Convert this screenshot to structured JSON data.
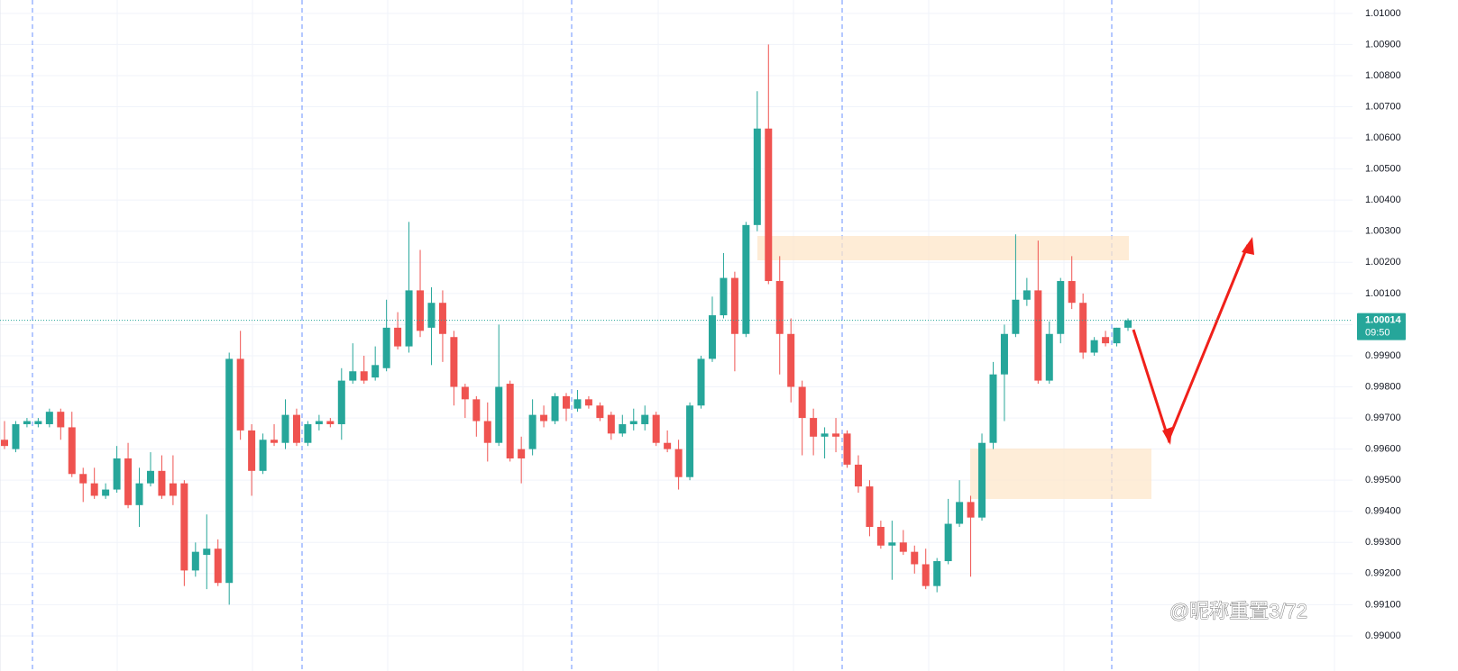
{
  "chart_data": {
    "type": "candlestick",
    "open": [
      0.9963,
      0.996,
      0.9968,
      0.9968,
      0.9968,
      0.9972,
      0.9967,
      0.9952,
      0.9949,
      0.9945,
      0.9947,
      0.9957,
      0.9942,
      0.9949,
      0.9953,
      0.9949,
      0.9949,
      0.9921,
      0.9926,
      0.9928,
      0.9917,
      0.9989,
      0.9966,
      0.9953,
      0.9963,
      0.9962,
      0.9971,
      0.9962,
      0.9968,
      0.9969,
      0.9968,
      0.9982,
      0.9985,
      0.9983,
      0.9986,
      0.9999,
      0.9993,
      1.0011,
      0.9999,
      1.0007,
      0.9996,
      0.998,
      0.9976,
      0.9969,
      0.9962,
      0.9981,
      0.996,
      0.996,
      0.9971,
      0.9969,
      0.9977,
      0.9973,
      0.9976,
      0.9974,
      0.9971,
      0.9965,
      0.9968,
      0.9968,
      0.9971,
      0.9962,
      0.996,
      0.9951,
      0.9974,
      0.9989,
      1.0003,
      1.0015,
      0.9997,
      1.0032,
      1.0063,
      1.0014,
      0.9997,
      0.998,
      0.997,
      0.9964,
      0.9965,
      0.9965,
      0.9955,
      0.9948,
      0.9935,
      0.9929,
      0.993,
      0.9927,
      0.9923,
      0.9916,
      0.9924,
      0.9936,
      0.9943,
      0.9938,
      0.9962,
      0.9984,
      0.9997,
      1.0008,
      1.0011,
      0.9982,
      0.9997,
      1.0014,
      1.0007,
      0.9991,
      0.9996,
      0.9994,
      0.9999
    ],
    "high": [
      0.9969,
      0.9969,
      0.997,
      0.997,
      0.9973,
      0.9973,
      0.9972,
      0.9954,
      0.9954,
      0.9949,
      0.9961,
      0.9962,
      0.9954,
      0.9959,
      0.9958,
      0.9958,
      0.995,
      0.993,
      0.9939,
      0.9931,
      0.9991,
      0.9998,
      0.9968,
      0.9965,
      0.9968,
      0.9976,
      0.9973,
      0.9969,
      0.9971,
      0.997,
      0.9986,
      0.9994,
      0.999,
      0.9993,
      1.0008,
      1.0004,
      1.0033,
      1.0024,
      1.0012,
      1.0011,
      0.9998,
      0.9981,
      0.9977,
      0.9975,
      1.0,
      0.9982,
      0.9964,
      0.9976,
      0.9974,
      0.9978,
      0.9978,
      0.9979,
      0.9977,
      0.9975,
      0.9972,
      0.9971,
      0.9973,
      0.9974,
      0.9972,
      0.9966,
      0.9963,
      0.9975,
      0.999,
      1.0009,
      1.0023,
      1.0017,
      1.0033,
      1.0075,
      1.009,
      1.0022,
      1.0002,
      0.9982,
      0.9973,
      0.9967,
      0.997,
      0.9966,
      0.9958,
      0.995,
      0.9937,
      0.9937,
      0.9934,
      0.9929,
      0.9928,
      0.9925,
      0.9944,
      0.995,
      0.9945,
      0.9965,
      0.9988,
      1.0,
      1.0029,
      1.0015,
      1.0027,
      1.0001,
      1.0015,
      1.0022,
      1.001,
      0.9996,
      0.9998,
      0.9999,
      1.0002
    ],
    "low": [
      0.996,
      0.9959,
      0.9967,
      0.9967,
      0.9967,
      0.9963,
      0.9951,
      0.9943,
      0.9944,
      0.9944,
      0.9946,
      0.9941,
      0.9935,
      0.9948,
      0.9944,
      0.9942,
      0.9916,
      0.9919,
      0.9915,
      0.9916,
      0.991,
      0.9963,
      0.9945,
      0.9952,
      0.9961,
      0.996,
      0.9961,
      0.9961,
      0.9966,
      0.9967,
      0.9963,
      0.9981,
      0.9981,
      0.9982,
      0.9985,
      0.9992,
      0.9991,
      0.9996,
      0.9987,
      0.9988,
      0.9974,
      0.997,
      0.9964,
      0.9956,
      0.9961,
      0.9956,
      0.9949,
      0.9958,
      0.9967,
      0.9968,
      0.9969,
      0.9972,
      0.9973,
      0.9969,
      0.9963,
      0.9964,
      0.9966,
      0.9966,
      0.9961,
      0.9959,
      0.9947,
      0.995,
      0.9973,
      0.9988,
      1.0002,
      0.9985,
      0.9996,
      1.003,
      1.0013,
      0.9984,
      0.9975,
      0.9958,
      0.9958,
      0.9957,
      0.9959,
      0.9954,
      0.9946,
      0.9932,
      0.9928,
      0.9918,
      0.9926,
      0.992,
      0.9915,
      0.9914,
      0.9923,
      0.9935,
      0.9919,
      0.9937,
      0.996,
      0.9969,
      0.9996,
      1.0006,
      0.9981,
      0.9981,
      0.9994,
      1.0005,
      0.9989,
      0.999,
      0.9993,
      0.9993,
      0.9998
    ],
    "close": [
      0.9961,
      0.9968,
      0.9969,
      0.9969,
      0.9972,
      0.9967,
      0.9952,
      0.9949,
      0.9945,
      0.9947,
      0.9957,
      0.9942,
      0.9949,
      0.9953,
      0.9945,
      0.9945,
      0.9921,
      0.9927,
      0.9928,
      0.9917,
      0.9989,
      0.9966,
      0.9953,
      0.9963,
      0.9962,
      0.9971,
      0.9962,
      0.9968,
      0.9969,
      0.9968,
      0.9982,
      0.9985,
      0.9982,
      0.9987,
      0.9999,
      0.9993,
      1.0011,
      0.9998,
      1.0007,
      0.9997,
      0.998,
      0.9976,
      0.9969,
      0.9962,
      0.998,
      0.9957,
      0.9957,
      0.9971,
      0.9969,
      0.9977,
      0.9973,
      0.9976,
      0.9974,
      0.997,
      0.9965,
      0.9968,
      0.9969,
      0.9971,
      0.9962,
      0.996,
      0.9951,
      0.9974,
      0.9989,
      1.0003,
      1.0015,
      0.9997,
      1.0032,
      1.0063,
      1.0014,
      0.9997,
      0.998,
      0.997,
      0.9964,
      0.9965,
      0.9964,
      0.9955,
      0.9948,
      0.9935,
      0.9929,
      0.993,
      0.9927,
      0.9923,
      0.9916,
      0.9924,
      0.9936,
      0.9943,
      0.9938,
      0.9962,
      0.9984,
      0.9997,
      1.0008,
      1.0011,
      0.9982,
      0.9997,
      1.0014,
      1.0007,
      0.9991,
      0.9995,
      0.9994,
      0.9999,
      1.00014
    ],
    "up_color": "#26a69a",
    "down_color": "#ef5350",
    "ylim": [
      0.98887,
      1.01043
    ],
    "yticks": [
      {
        "value": 0.99,
        "label": "0.99000"
      },
      {
        "value": 0.991,
        "label": "0.99100"
      },
      {
        "value": 0.992,
        "label": "0.99200"
      },
      {
        "value": 0.993,
        "label": "0.99300"
      },
      {
        "value": 0.994,
        "label": "0.99400"
      },
      {
        "value": 0.995,
        "label": "0.99500"
      },
      {
        "value": 0.996,
        "label": "0.99600"
      },
      {
        "value": 0.997,
        "label": "0.99700"
      },
      {
        "value": 0.998,
        "label": "0.99800"
      },
      {
        "value": 0.999,
        "label": "0.99900"
      },
      {
        "value": 1.0,
        "label": "1.00000"
      },
      {
        "value": 1.001,
        "label": "1.00100"
      },
      {
        "value": 1.002,
        "label": "1.00200"
      },
      {
        "value": 1.003,
        "label": "1.00300"
      },
      {
        "value": 1.004,
        "label": "1.00400"
      },
      {
        "value": 1.005,
        "label": "1.00500"
      },
      {
        "value": 1.006,
        "label": "1.00600"
      },
      {
        "value": 1.007,
        "label": "1.00700"
      },
      {
        "value": 1.008,
        "label": "1.00800"
      },
      {
        "value": 1.009,
        "label": "1.00900"
      },
      {
        "value": 1.01,
        "label": "1.01000"
      }
    ],
    "grid": true,
    "last_price": 1.00014,
    "countdown": "09:50",
    "watermark": "@昵称重置3/72"
  }
}
